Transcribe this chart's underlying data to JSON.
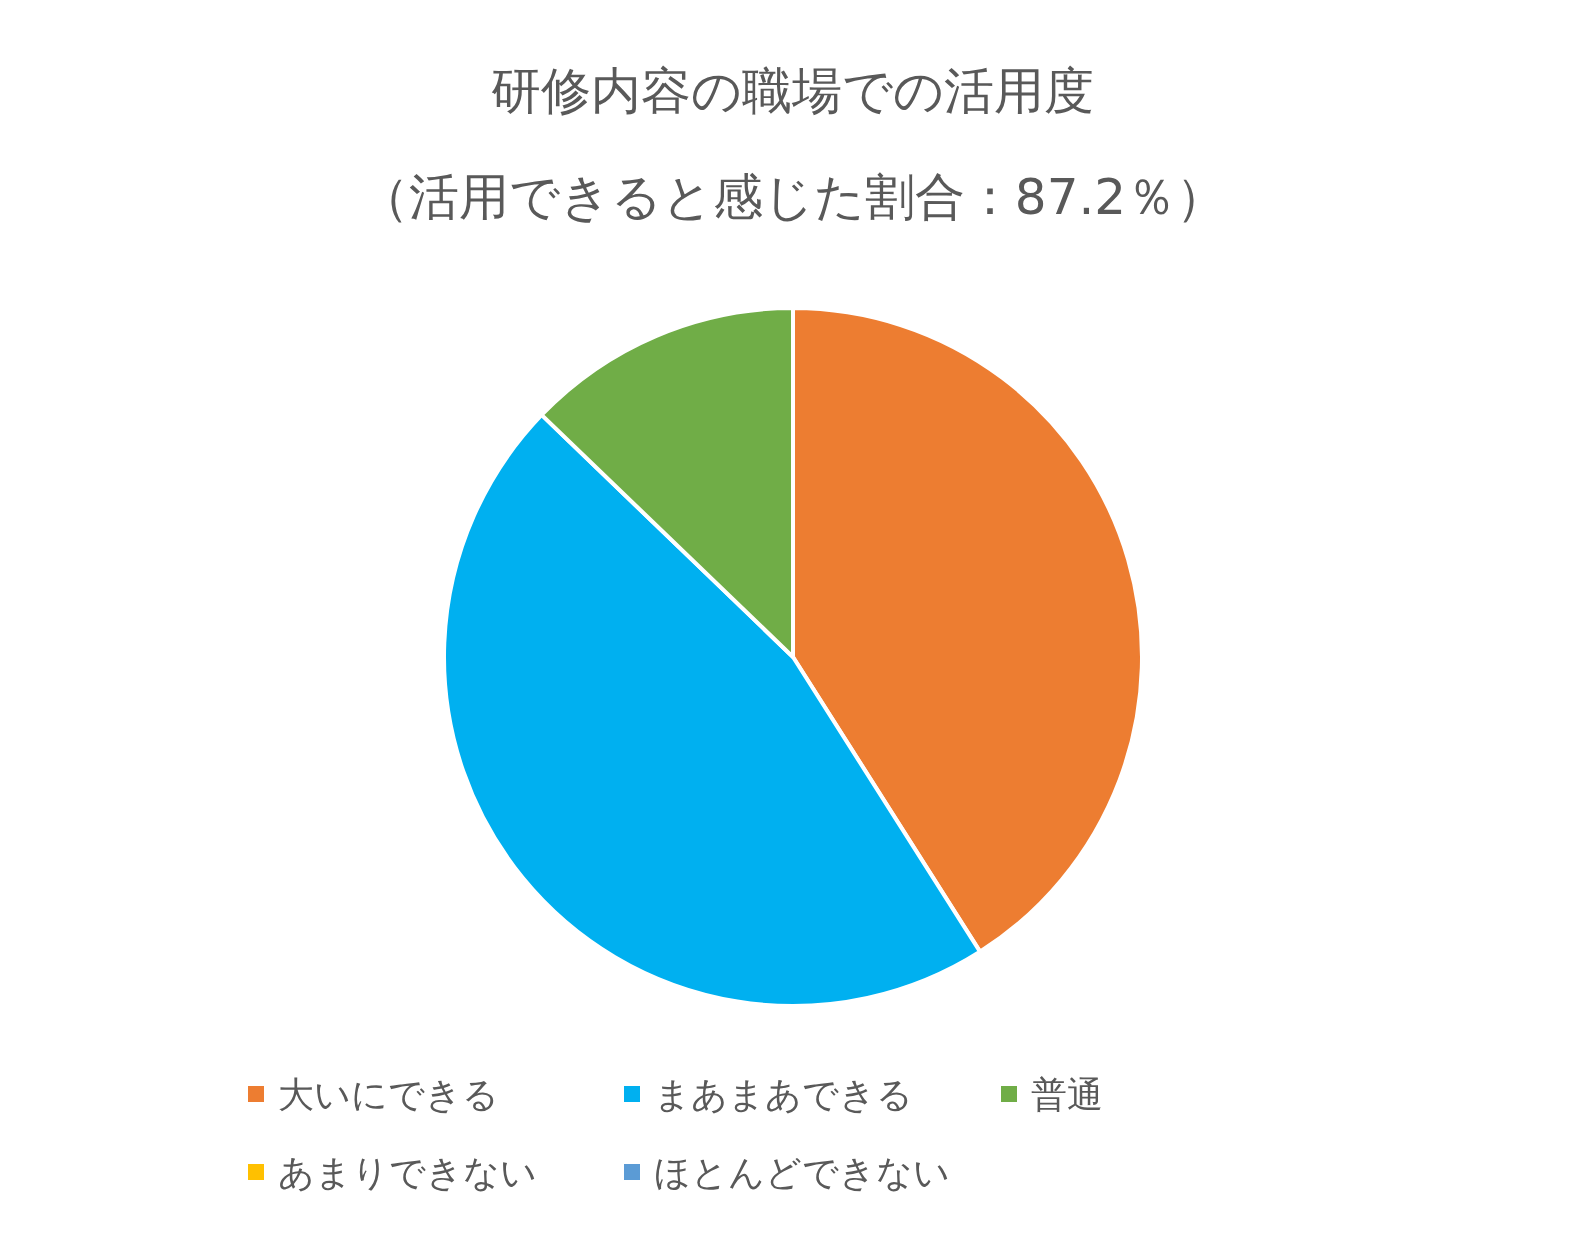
{
  "chart_data": {
    "type": "pie",
    "title": "研修内容の職場での活用度",
    "subtitle": "（活用できると感じた割合：87.2％）",
    "categories": [
      "大いにできる",
      "まあまあできる",
      "普通",
      "あまりできない",
      "ほとんどできない"
    ],
    "values": [
      41.0,
      46.2,
      12.8,
      0,
      0
    ],
    "colors": [
      "#ed7d31",
      "#00b0f0",
      "#70ad47",
      "#ffc000",
      "#5b9bd5"
    ],
    "legend": "bottom"
  }
}
